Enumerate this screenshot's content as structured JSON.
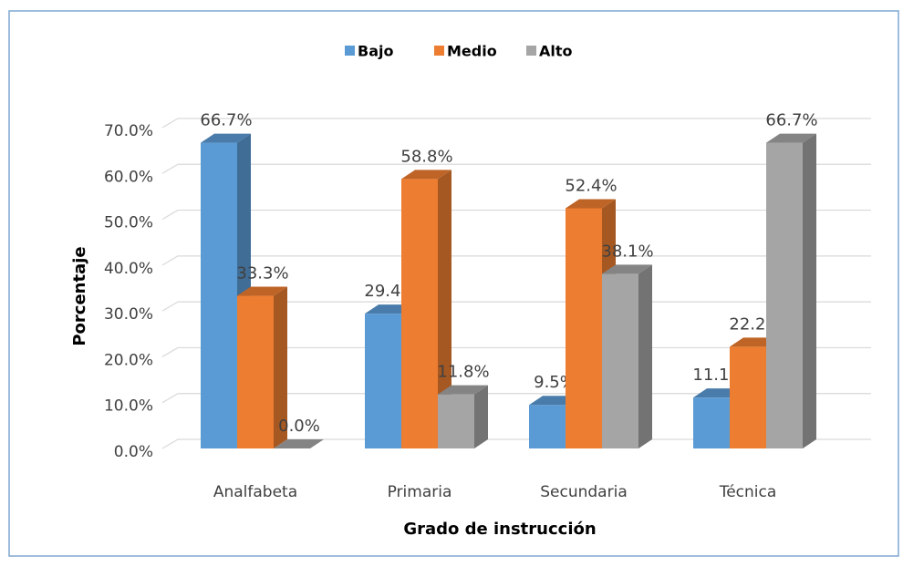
{
  "chart_data": {
    "type": "bar3d",
    "x_label": "Grado de instrucción",
    "y_label": "Porcentaje",
    "categories": [
      "Analfabeta",
      "Primaria",
      "Secundaria",
      "Técnica"
    ],
    "series": [
      {
        "name": "Bajo",
        "color": "#5b9bd5",
        "values": [
          66.7,
          29.4,
          9.5,
          11.1
        ],
        "value_labels": [
          "66.7%",
          "29.4%",
          "9.5%",
          "11.1%"
        ]
      },
      {
        "name": "Medio",
        "color": "#ed7d31",
        "values": [
          33.3,
          58.8,
          52.4,
          22.2
        ],
        "value_labels": [
          "33.3%",
          "58.8%",
          "52.4%",
          "22.2%"
        ]
      },
      {
        "name": "Alto",
        "color": "#a5a5a5",
        "values": [
          0,
          11.8,
          38.1,
          66.7
        ],
        "value_labels": [
          "0.0%",
          "11.8%",
          "38.1%",
          "66.7%"
        ]
      }
    ],
    "ylim": [
      0,
      70
    ],
    "yticks": [
      {
        "value": 0,
        "label": "0.0%"
      },
      {
        "value": 10,
        "label": "10.0%"
      },
      {
        "value": 20,
        "label": "20.0%"
      },
      {
        "value": 30,
        "label": "30.0%"
      },
      {
        "value": 40,
        "label": "40.0%"
      },
      {
        "value": 50,
        "label": "50.0%"
      },
      {
        "value": 60,
        "label": "60.0%"
      },
      {
        "value": 70,
        "label": "70.0%"
      }
    ],
    "grid": true,
    "legend": "top"
  }
}
